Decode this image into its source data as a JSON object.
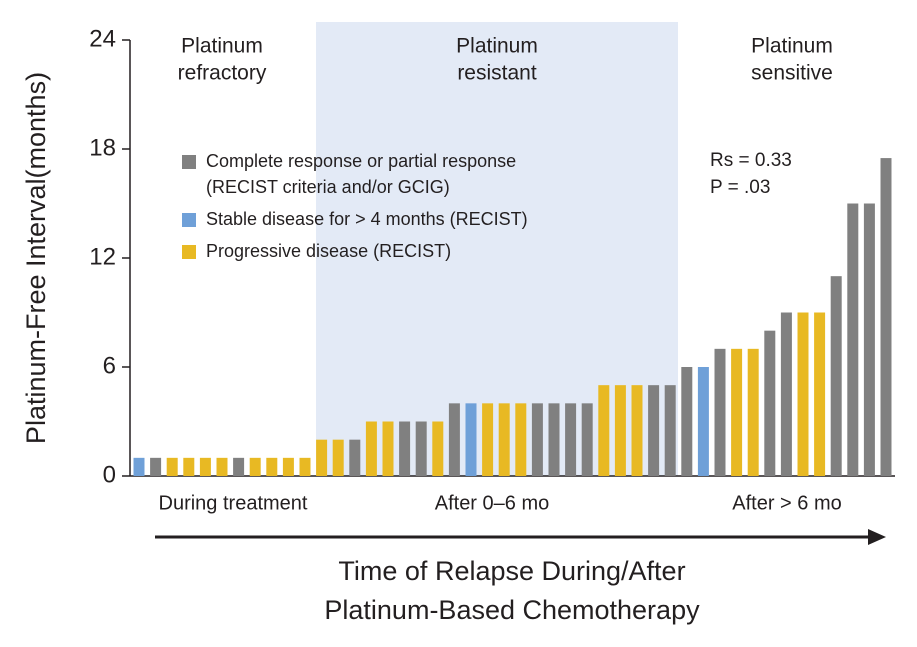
{
  "chart_data": {
    "type": "bar",
    "y_label": "Platinum-Free Interval(months)",
    "x_label": [
      "Time of Relapse During/After",
      "Platinum-Based Chemotherapy"
    ],
    "regions": [
      {
        "lines": [
          "Platinum",
          "refractory"
        ]
      },
      {
        "lines": [
          "Platinum",
          "resistant"
        ]
      },
      {
        "lines": [
          "Platinum",
          "sensitive"
        ]
      }
    ],
    "groups": [
      "During treatment",
      "After 0–6 mo",
      "After > 6 mo"
    ],
    "annotations": [
      "Rs = 0.33",
      "P = .03"
    ],
    "legend": [
      {
        "lines": [
          "Complete response or partial response",
          "(RECIST criteria and/or GCIG)"
        ],
        "color": "#808080"
      },
      {
        "lines": [
          "Stable disease for > 4 months (RECIST)"
        ],
        "color": "#6fa0d8"
      },
      {
        "lines": [
          "Progressive disease (RECIST)"
        ],
        "color": "#e8b923"
      }
    ],
    "values": [
      1,
      1,
      1,
      1,
      1,
      1,
      1,
      1,
      1,
      1,
      1,
      2,
      2,
      2,
      3,
      3,
      3,
      3,
      3,
      4,
      4,
      4,
      4,
      4,
      4,
      4,
      4,
      4,
      5,
      5,
      5,
      5,
      5,
      6,
      6,
      7,
      7,
      7,
      8,
      9,
      9,
      9,
      11,
      15,
      15,
      17.5
    ],
    "status": [
      1,
      0,
      2,
      2,
      2,
      2,
      0,
      2,
      2,
      2,
      2,
      2,
      2,
      0,
      2,
      2,
      0,
      0,
      2,
      0,
      1,
      2,
      2,
      2,
      0,
      0,
      0,
      0,
      2,
      2,
      2,
      0,
      0,
      0,
      1,
      0,
      2,
      2,
      0,
      0,
      2,
      2,
      0,
      0,
      0,
      0
    ],
    "ylim": [
      0,
      24
    ],
    "yticks": [
      0,
      6,
      12,
      18,
      24
    ]
  }
}
